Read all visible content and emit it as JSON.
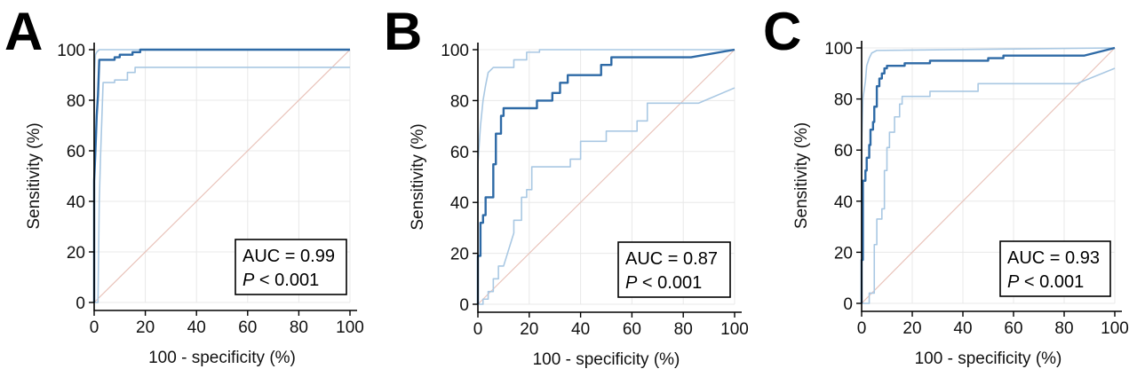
{
  "figure": {
    "colors": {
      "roc": "#2e6aa6",
      "ci": "#a9c8e3",
      "diagonal": "#e9c3ba",
      "grid": "#e8e8e8"
    }
  },
  "chart_data": [
    {
      "type": "line",
      "panel": "A",
      "xlabel": "100 - specificity (%)",
      "ylabel": "Sensitivity (%)",
      "xlim": [
        0,
        100
      ],
      "ylim": [
        0,
        100
      ],
      "xticks": [
        "0",
        "20",
        "40",
        "60",
        "80",
        "100"
      ],
      "yticks": [
        "0",
        "20",
        "40",
        "60",
        "80",
        "100"
      ],
      "grid": true,
      "annotation": {
        "auc": "AUC = 0.99",
        "p_italic": "P",
        "p_rest": " < 0.001",
        "placement": "bottom-right"
      },
      "series": [
        {
          "role": "roc",
          "points": [
            [
              0,
              0
            ],
            [
              0,
              48
            ],
            [
              0.5,
              60
            ],
            [
              1,
              74
            ],
            [
              1.5,
              82
            ],
            [
              2,
              96
            ],
            [
              8,
              96
            ],
            [
              8,
              97
            ],
            [
              10,
              97
            ],
            [
              10,
              98
            ],
            [
              15,
              98
            ],
            [
              15,
              99
            ],
            [
              18,
              99
            ],
            [
              18,
              100
            ],
            [
              100,
              100
            ]
          ]
        },
        {
          "role": "ci-lower",
          "points": [
            [
              0,
              0
            ],
            [
              1.5,
              0
            ],
            [
              2,
              40
            ],
            [
              2.5,
              58
            ],
            [
              3.5,
              87
            ],
            [
              8,
              87
            ],
            [
              8,
              88
            ],
            [
              13,
              88
            ],
            [
              13,
              91
            ],
            [
              16,
              91
            ],
            [
              16,
              93
            ],
            [
              100,
              93
            ]
          ]
        },
        {
          "role": "ci-upper",
          "points": [
            [
              0,
              0
            ],
            [
              0,
              88
            ],
            [
              0.5,
              98
            ],
            [
              1,
              99
            ],
            [
              2,
              100
            ],
            [
              100,
              100
            ]
          ]
        },
        {
          "role": "chance",
          "points": [
            [
              0,
              0
            ],
            [
              100,
              100
            ]
          ]
        }
      ]
    },
    {
      "type": "line",
      "panel": "B",
      "xlabel": "100 - specificity (%)",
      "ylabel": "Sensitivity (%)",
      "xlim": [
        0,
        100
      ],
      "ylim": [
        0,
        100
      ],
      "xticks": [
        "0",
        "20",
        "40",
        "60",
        "80",
        "100"
      ],
      "yticks": [
        "0",
        "20",
        "40",
        "60",
        "80",
        "100"
      ],
      "grid": true,
      "annotation": {
        "auc": "AUC = 0.87",
        "p_italic": "P",
        "p_rest": " < 0.001",
        "placement": "bottom-right"
      },
      "series": [
        {
          "role": "roc",
          "points": [
            [
              0,
              0
            ],
            [
              0,
              19
            ],
            [
              1,
              19
            ],
            [
              1,
              32
            ],
            [
              2,
              32
            ],
            [
              2,
              35
            ],
            [
              3,
              35
            ],
            [
              3,
              42
            ],
            [
              6,
              42
            ],
            [
              6,
              55
            ],
            [
              7,
              55
            ],
            [
              7,
              67
            ],
            [
              9,
              67
            ],
            [
              9,
              74
            ],
            [
              10,
              74
            ],
            [
              10,
              77
            ],
            [
              23,
              77
            ],
            [
              23,
              80
            ],
            [
              29,
              80
            ],
            [
              29,
              83
            ],
            [
              32,
              83
            ],
            [
              32,
              87
            ],
            [
              35,
              87
            ],
            [
              35,
              90
            ],
            [
              48,
              90
            ],
            [
              48,
              94
            ],
            [
              52,
              94
            ],
            [
              52,
              97
            ],
            [
              83,
              97
            ],
            [
              100,
              100
            ]
          ]
        },
        {
          "role": "ci-lower",
          "points": [
            [
              0,
              0
            ],
            [
              2,
              0
            ],
            [
              2,
              2
            ],
            [
              4,
              2
            ],
            [
              4,
              5
            ],
            [
              6,
              5
            ],
            [
              6,
              10
            ],
            [
              8,
              10
            ],
            [
              8,
              15
            ],
            [
              10,
              15
            ],
            [
              14,
              28
            ],
            [
              14,
              33
            ],
            [
              17,
              33
            ],
            [
              17,
              42
            ],
            [
              19,
              42
            ],
            [
              19,
              45
            ],
            [
              21,
              45
            ],
            [
              21,
              54
            ],
            [
              36,
              54
            ],
            [
              36,
              57
            ],
            [
              40,
              57
            ],
            [
              40,
              64
            ],
            [
              50,
              64
            ],
            [
              50,
              68
            ],
            [
              62,
              68
            ],
            [
              62,
              72
            ],
            [
              66,
              72
            ],
            [
              66,
              79
            ],
            [
              86,
              79
            ],
            [
              100,
              85
            ]
          ]
        },
        {
          "role": "ci-upper",
          "points": [
            [
              0,
              0
            ],
            [
              0,
              55
            ],
            [
              1,
              70
            ],
            [
              2,
              80
            ],
            [
              3,
              86
            ],
            [
              4,
              91
            ],
            [
              6,
              93
            ],
            [
              14,
              93
            ],
            [
              14,
              96
            ],
            [
              19,
              96
            ],
            [
              19,
              99
            ],
            [
              24,
              99
            ],
            [
              24,
              100
            ],
            [
              100,
              100
            ]
          ]
        },
        {
          "role": "chance",
          "points": [
            [
              0,
              0
            ],
            [
              100,
              100
            ]
          ]
        }
      ]
    },
    {
      "type": "line",
      "panel": "C",
      "xlabel": "100 - specificity (%)",
      "ylabel": "Sensitivity (%)",
      "xlim": [
        0,
        100
      ],
      "ylim": [
        0,
        100
      ],
      "xticks": [
        "0",
        "20",
        "40",
        "60",
        "80",
        "100"
      ],
      "yticks": [
        "0",
        "20",
        "40",
        "60",
        "80",
        "100"
      ],
      "grid": true,
      "annotation": {
        "auc": "AUC = 0.93",
        "p_italic": "P",
        "p_rest": " < 0.001",
        "placement": "bottom-right"
      },
      "series": [
        {
          "role": "roc",
          "points": [
            [
              0,
              0
            ],
            [
              0,
              17
            ],
            [
              0.5,
              17
            ],
            [
              0.5,
              48
            ],
            [
              1.5,
              48
            ],
            [
              1.5,
              52
            ],
            [
              2,
              52
            ],
            [
              2,
              57
            ],
            [
              3,
              57
            ],
            [
              3,
              62
            ],
            [
              3.5,
              62
            ],
            [
              3.5,
              68
            ],
            [
              4.5,
              68
            ],
            [
              4.5,
              71
            ],
            [
              5,
              71
            ],
            [
              5,
              77
            ],
            [
              6,
              77
            ],
            [
              6,
              85
            ],
            [
              7,
              85
            ],
            [
              7,
              88
            ],
            [
              8,
              88
            ],
            [
              8,
              90
            ],
            [
              9,
              90
            ],
            [
              9,
              92
            ],
            [
              10,
              92
            ],
            [
              10,
              93
            ],
            [
              17,
              93
            ],
            [
              17,
              94
            ],
            [
              27,
              94
            ],
            [
              27,
              95
            ],
            [
              50,
              95
            ],
            [
              50,
              96
            ],
            [
              56,
              96
            ],
            [
              56,
              97
            ],
            [
              88,
              97
            ],
            [
              100,
              100
            ]
          ]
        },
        {
          "role": "ci-lower",
          "points": [
            [
              0,
              0
            ],
            [
              3,
              0
            ],
            [
              3,
              4
            ],
            [
              5,
              4
            ],
            [
              5,
              23
            ],
            [
              6,
              23
            ],
            [
              6,
              33
            ],
            [
              8,
              33
            ],
            [
              8,
              37
            ],
            [
              9,
              37
            ],
            [
              9,
              52
            ],
            [
              10,
              52
            ],
            [
              10,
              61
            ],
            [
              11,
              61
            ],
            [
              11,
              67
            ],
            [
              13,
              67
            ],
            [
              13,
              73
            ],
            [
              15,
              73
            ],
            [
              15,
              78
            ],
            [
              16,
              78
            ],
            [
              16,
              81
            ],
            [
              27,
              81
            ],
            [
              27,
              83
            ],
            [
              46,
              83
            ],
            [
              46,
              86
            ],
            [
              85,
              86
            ],
            [
              100,
              92
            ]
          ]
        },
        {
          "role": "ci-upper",
          "points": [
            [
              0,
              0
            ],
            [
              0,
              62
            ],
            [
              0.5,
              80
            ],
            [
              1.5,
              87
            ],
            [
              2,
              93
            ],
            [
              3,
              96
            ],
            [
              4,
              98
            ],
            [
              6,
              99
            ],
            [
              100,
              100
            ]
          ]
        },
        {
          "role": "chance",
          "points": [
            [
              0,
              0
            ],
            [
              100,
              100
            ]
          ]
        }
      ]
    }
  ]
}
